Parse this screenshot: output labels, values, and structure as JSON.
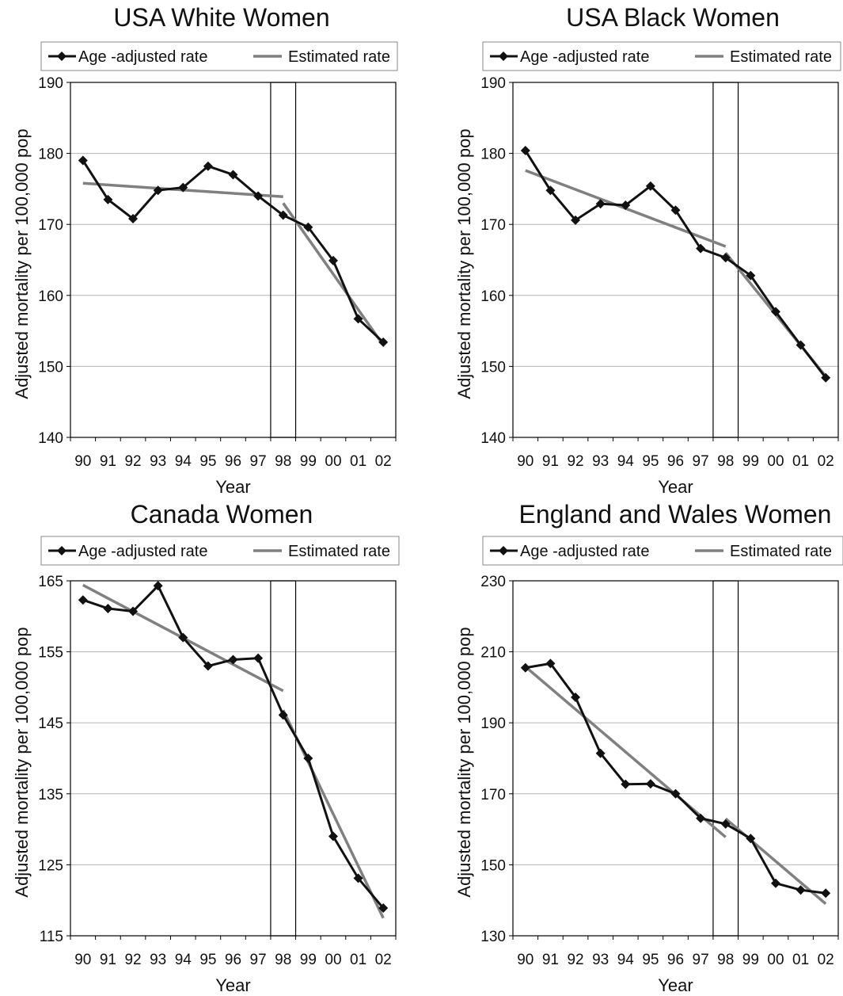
{
  "chart_data": [
    {
      "type": "line",
      "title": "USA White Women",
      "xlabel": "Year",
      "ylabel": "Adjusted mortality per 100,000 pop",
      "categories": [
        "90",
        "91",
        "92",
        "93",
        "94",
        "95",
        "96",
        "97",
        "98",
        "99",
        "00",
        "01",
        "02"
      ],
      "ylim": [
        140,
        190
      ],
      "yticks": [
        140,
        150,
        160,
        170,
        180,
        190
      ],
      "grid": true,
      "legend": "top",
      "highlight_category": "98",
      "series": [
        {
          "name": "Age -adjusted rate",
          "color": "#111111",
          "marker": "diamond",
          "values": [
            179.0,
            173.5,
            170.8,
            174.8,
            175.2,
            178.2,
            177.0,
            174.0,
            171.3,
            169.6,
            164.9,
            156.7,
            153.4
          ]
        },
        {
          "name": "Estimated rate",
          "color": "#808080",
          "marker": "none",
          "segments": [
            {
              "x": [
                "90",
                "98"
              ],
              "y": [
                175.8,
                173.9
              ]
            },
            {
              "x": [
                "98",
                "02"
              ],
              "y": [
                173.0,
                153.0
              ]
            }
          ]
        }
      ]
    },
    {
      "type": "line",
      "title": "USA Black Women",
      "xlabel": "Year",
      "ylabel": "Adjusted mortality per 100,000 pop",
      "categories": [
        "90",
        "91",
        "92",
        "93",
        "94",
        "95",
        "96",
        "97",
        "98",
        "99",
        "00",
        "01",
        "02"
      ],
      "ylim": [
        140,
        190
      ],
      "yticks": [
        140,
        150,
        160,
        170,
        180,
        190
      ],
      "grid": true,
      "legend": "top",
      "highlight_category": "98",
      "series": [
        {
          "name": "Age -adjusted rate",
          "color": "#111111",
          "marker": "diamond",
          "values": [
            180.4,
            174.8,
            170.6,
            172.9,
            172.7,
            175.4,
            172.0,
            166.6,
            165.3,
            162.8,
            157.7,
            153.0,
            148.4
          ]
        },
        {
          "name": "Estimated rate",
          "color": "#808080",
          "marker": "none",
          "segments": [
            {
              "x": [
                "90",
                "98"
              ],
              "y": [
                177.6,
                166.9
              ]
            },
            {
              "x": [
                "98",
                "02"
              ],
              "y": [
                166.0,
                148.6
              ]
            }
          ]
        }
      ]
    },
    {
      "type": "line",
      "title": "Canada Women",
      "xlabel": "Year",
      "ylabel": "Adjusted mortality per 100,000 pop",
      "categories": [
        "90",
        "91",
        "92",
        "93",
        "94",
        "95",
        "96",
        "97",
        "98",
        "99",
        "00",
        "01",
        "02"
      ],
      "ylim": [
        115,
        165
      ],
      "yticks": [
        115,
        125,
        135,
        145,
        155,
        165
      ],
      "grid": true,
      "legend": "top",
      "highlight_category": "98",
      "series": [
        {
          "name": "Age -adjusted rate",
          "color": "#111111",
          "marker": "diamond",
          "values": [
            162.3,
            161.1,
            160.7,
            164.3,
            157.0,
            153.0,
            153.9,
            154.1,
            146.1,
            140.0,
            129.0,
            123.1,
            118.9
          ]
        },
        {
          "name": "Estimated rate",
          "color": "#808080",
          "marker": "none",
          "segments": [
            {
              "x": [
                "90",
                "98"
              ],
              "y": [
                164.4,
                149.5
              ]
            },
            {
              "x": [
                "98",
                "02"
              ],
              "y": [
                146.8,
                117.5
              ]
            }
          ]
        }
      ]
    },
    {
      "type": "line",
      "title": "England and Wales Women",
      "xlabel": "Year",
      "ylabel": "Adjusted mortality per 100,000 pop",
      "categories": [
        "90",
        "91",
        "92",
        "93",
        "94",
        "95",
        "96",
        "97",
        "98",
        "99",
        "00",
        "01",
        "02"
      ],
      "ylim": [
        130,
        230
      ],
      "yticks": [
        130,
        150,
        170,
        190,
        210,
        230
      ],
      "grid": true,
      "legend": "top",
      "highlight_category": "98",
      "series": [
        {
          "name": "Age -adjusted rate",
          "color": "#111111",
          "marker": "diamond",
          "values": [
            205.5,
            206.7,
            197.2,
            181.4,
            172.7,
            172.8,
            170.0,
            163.1,
            161.5,
            157.4,
            144.8,
            142.9,
            142.0
          ]
        },
        {
          "name": "Estimated rate",
          "color": "#808080",
          "marker": "none",
          "segments": [
            {
              "x": [
                "90",
                "98"
              ],
              "y": [
                205.8,
                157.8
              ]
            },
            {
              "x": [
                "98",
                "02"
              ],
              "y": [
                163.0,
                139.0
              ]
            }
          ]
        }
      ]
    }
  ]
}
